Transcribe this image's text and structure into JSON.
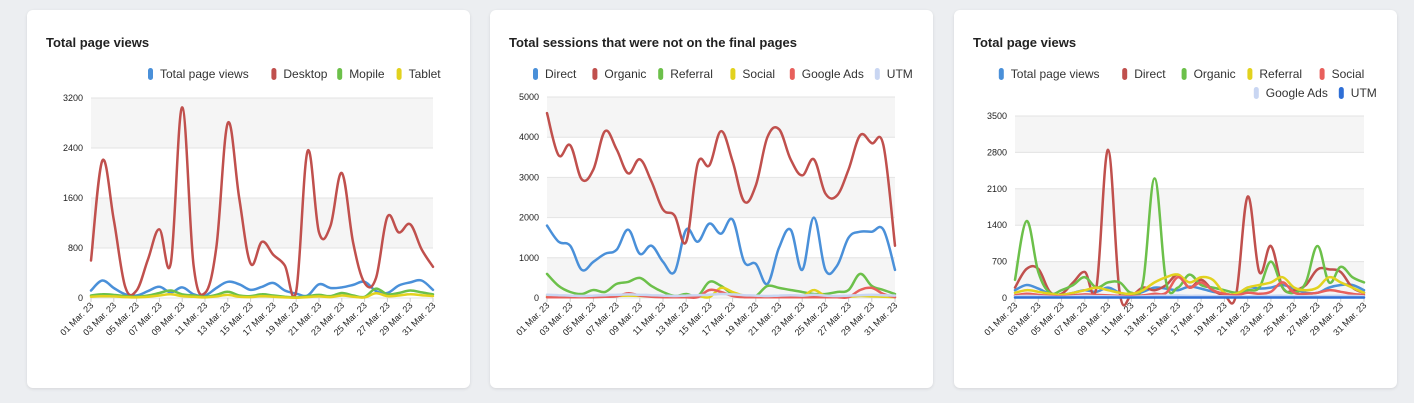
{
  "charts": [
    {
      "title": "Total page views",
      "chart_data": {
        "type": "line",
        "ylim": [
          0,
          3200
        ],
        "yticks": [
          "0",
          "800",
          "1600",
          "2400",
          "3200"
        ],
        "x": [
          "01 Mar. 23",
          "02 Mar. 23",
          "03 Mar. 23",
          "04 Mar. 23",
          "05 Mar. 23",
          "06 Mar. 23",
          "07 Mar. 23",
          "08 Mar. 23",
          "09 Mar. 23",
          "10 Mar. 23",
          "11 Mar. 23",
          "12 Mar. 23",
          "13 Mar. 23",
          "14 Mar. 23",
          "15 Mar. 23",
          "16 Mar. 23",
          "17 Mar. 23",
          "18 Mar. 23",
          "19 Mar. 23",
          "20 Mar. 23",
          "21 Mar. 23",
          "22 Mar. 23",
          "23 Mar. 23",
          "24 Mar. 23",
          "25 Mar. 23",
          "26 Mar. 23",
          "27 Mar. 23",
          "28 Mar. 23",
          "29 Mar. 23",
          "30 Mar. 23",
          "31 Mar. 23"
        ],
        "xtick_labels": [
          "01 Mar. 23",
          "03 Mar. 23",
          "05 Mar. 23",
          "07 Mar. 23",
          "09 Mar. 23",
          "11 Mar. 23",
          "13 Mar. 23",
          "15 Mar. 23",
          "17 Mar. 23",
          "19 Mar. 23",
          "21 Mar. 23",
          "23 Mar. 23",
          "25 Mar. 23",
          "27 Mar. 23",
          "29 Mar. 23",
          "31 Mar. 23"
        ],
        "legend_rows": [
          [
            0,
            1,
            2,
            3
          ]
        ],
        "series": [
          {
            "name": "Total page views",
            "color": "#4a90d9",
            "values": [
              120,
              280,
              160,
              60,
              40,
              110,
              180,
              90,
              170,
              60,
              40,
              160,
              260,
              220,
              130,
              180,
              240,
              120,
              70,
              40,
              220,
              160,
              170,
              210,
              260,
              110,
              80,
              200,
              250,
              280,
              130
            ]
          },
          {
            "name": "Desktop",
            "color": "#c0504d",
            "values": [
              600,
              2200,
              1250,
              180,
              120,
              620,
              1100,
              560,
              3050,
              520,
              80,
              820,
              2800,
              1600,
              550,
              900,
              690,
              520,
              110,
              2350,
              1050,
              1150,
              2000,
              880,
              240,
              320,
              1300,
              1050,
              1180,
              780,
              500
            ]
          },
          {
            "name": "Mopile",
            "color": "#6cc04a",
            "values": [
              40,
              60,
              50,
              30,
              20,
              40,
              80,
              120,
              60,
              40,
              20,
              50,
              100,
              40,
              30,
              60,
              40,
              20,
              10,
              30,
              50,
              30,
              80,
              40,
              20,
              150,
              60,
              80,
              120,
              90,
              60
            ]
          },
          {
            "name": "Tablet",
            "color": "#e2d21e",
            "values": [
              20,
              30,
              25,
              15,
              10,
              20,
              40,
              60,
              30,
              20,
              10,
              25,
              50,
              20,
              15,
              30,
              20,
              10,
              5,
              15,
              25,
              15,
              40,
              20,
              10,
              75,
              30,
              40,
              60,
              45,
              30
            ]
          }
        ]
      }
    },
    {
      "title": "Total sessions that were not on the final pages",
      "chart_data": {
        "type": "line",
        "ylim": [
          0,
          5000
        ],
        "yticks": [
          "0",
          "1000",
          "2000",
          "3000",
          "4000",
          "5000"
        ],
        "x": [
          "01 Mar. 23",
          "02 Mar. 23",
          "03 Mar. 23",
          "04 Mar. 23",
          "05 Mar. 23",
          "06 Mar. 23",
          "07 Mar. 23",
          "08 Mar. 23",
          "09 Mar. 23",
          "10 Mar. 23",
          "11 Mar. 23",
          "12 Mar. 23",
          "13 Mar. 23",
          "14 Mar. 23",
          "15 Mar. 23",
          "16 Mar. 23",
          "17 Mar. 23",
          "18 Mar. 23",
          "19 Mar. 23",
          "20 Mar. 23",
          "21 Mar. 23",
          "22 Mar. 23",
          "23 Mar. 23",
          "24 Mar. 23",
          "25 Mar. 23",
          "26 Mar. 23",
          "27 Mar. 23",
          "28 Mar. 23",
          "29 Mar. 23",
          "30 Mar. 23",
          "31 Mar. 23"
        ],
        "xtick_labels": [
          "01 Mar. 23",
          "03 Mar. 23",
          "05 Mar. 23",
          "07 Mar. 23",
          "09 Mar. 23",
          "11 Mar. 23",
          "13 Mar. 23",
          "15 Mar. 23",
          "17 Mar. 23",
          "19 Mar. 23",
          "21 Mar. 23",
          "23 Mar. 23",
          "25 Mar. 23",
          "27 Mar. 23",
          "29 Mar. 23",
          "31 Mar. 23"
        ],
        "legend_rows": [
          [
            0,
            1,
            2,
            3,
            4,
            5
          ]
        ],
        "series": [
          {
            "name": "Direct",
            "color": "#4a90d9",
            "values": [
              1800,
              1400,
              1300,
              700,
              900,
              1100,
              1200,
              1700,
              1100,
              1300,
              900,
              650,
              1700,
              1400,
              1850,
              1600,
              1950,
              900,
              850,
              350,
              1250,
              1700,
              700,
              2000,
              700,
              800,
              1500,
              1650,
              1650,
              1700,
              700
            ]
          },
          {
            "name": "Organic",
            "color": "#c0504d",
            "values": [
              4600,
              3550,
              3800,
              2950,
              3200,
              4150,
              3700,
              3100,
              3450,
              2900,
              2200,
              2050,
              1400,
              3350,
              3300,
              4150,
              3400,
              2400,
              2800,
              4000,
              4200,
              3450,
              3050,
              3450,
              2600,
              2550,
              3200,
              4050,
              3850,
              3800,
              1300
            ]
          },
          {
            "name": "Referral",
            "color": "#6cc04a",
            "values": [
              600,
              300,
              150,
              100,
              200,
              150,
              350,
              400,
              500,
              300,
              150,
              50,
              100,
              50,
              400,
              300,
              100,
              50,
              50,
              300,
              250,
              200,
              150,
              100,
              100,
              150,
              200,
              600,
              300,
              200,
              100
            ]
          },
          {
            "name": "Social",
            "color": "#e2d21e",
            "values": [
              50,
              40,
              30,
              20,
              30,
              40,
              50,
              60,
              50,
              40,
              30,
              20,
              30,
              50,
              20,
              250,
              150,
              60,
              40,
              30,
              50,
              40,
              30,
              200,
              50,
              40,
              30,
              50,
              40,
              30,
              20
            ]
          },
          {
            "name": "Google Ads",
            "color": "#e8605c",
            "values": [
              20,
              20,
              20,
              20,
              20,
              30,
              40,
              120,
              60,
              30,
              20,
              20,
              20,
              20,
              200,
              150,
              50,
              20,
              20,
              20,
              20,
              20,
              20,
              20,
              20,
              20,
              20,
              200,
              250,
              100,
              20
            ]
          },
          {
            "name": "UTM",
            "color": "#c9d6f2",
            "values": [
              80,
              70,
              60,
              50,
              60,
              70,
              80,
              90,
              80,
              70,
              60,
              50,
              60,
              70,
              80,
              100,
              90,
              70,
              60,
              50,
              60,
              70,
              60,
              80,
              60,
              50,
              60,
              70,
              80,
              70,
              60
            ]
          }
        ]
      }
    },
    {
      "title": "Total page views",
      "chart_data": {
        "type": "line",
        "ylim": [
          0,
          3500
        ],
        "yticks": [
          "0",
          "700",
          "1400",
          "2100",
          "2800",
          "3500"
        ],
        "x": [
          "01 Mar. 23",
          "02 Mar. 23",
          "03 Mar. 23",
          "04 Mar. 23",
          "05 Mar. 23",
          "06 Mar. 23",
          "07 Mar. 23",
          "08 Mar. 23",
          "09 Mar. 23",
          "10 Mar. 23",
          "11 Mar. 23",
          "12 Mar. 23",
          "13 Mar. 23",
          "14 Mar. 23",
          "15 Mar. 23",
          "16 Mar. 23",
          "17 Mar. 23",
          "18 Mar. 23",
          "19 Mar. 23",
          "20 Mar. 23",
          "21 Mar. 23",
          "22 Mar. 23",
          "23 Mar. 23",
          "24 Mar. 23",
          "25 Mar. 23",
          "26 Mar. 23",
          "27 Mar. 23",
          "28 Mar. 23",
          "29 Mar. 23",
          "30 Mar. 23",
          "31 Mar. 23"
        ],
        "xtick_labels": [
          "01 Mar. 23",
          "03 Mar. 23",
          "05 Mar. 23",
          "07 Mar. 23",
          "09 Mar. 23",
          "11 Mar. 23",
          "13 Mar. 23",
          "15 Mar. 23",
          "17 Mar. 23",
          "19 Mar. 23",
          "21 Mar. 23",
          "23 Mar. 23",
          "25 Mar. 23",
          "27 Mar. 23",
          "29 Mar. 23",
          "31 Mar. 23"
        ],
        "legend_rows": [
          [
            0,
            1,
            2,
            3,
            4
          ],
          [
            5,
            6
          ]
        ],
        "series": [
          {
            "name": "Total page views",
            "color": "#4a90d9",
            "values": [
              150,
              250,
              180,
              80,
              60,
              100,
              150,
              120,
              200,
              100,
              50,
              120,
              200,
              180,
              150,
              220,
              180,
              120,
              90,
              50,
              200,
              180,
              200,
              250,
              180,
              100,
              100,
              200,
              250,
              250,
              150
            ]
          },
          {
            "name": "Direct",
            "color": "#c0504d",
            "values": [
              200,
              560,
              560,
              120,
              80,
              300,
              500,
              200,
              2850,
              100,
              50,
              200,
              150,
              250,
              450,
              200,
              350,
              150,
              50,
              50,
              1950,
              500,
              1000,
              200,
              150,
              250,
              550,
              550,
              500,
              200,
              100
            ]
          },
          {
            "name": "Organic",
            "color": "#6cc04a",
            "values": [
              350,
              1480,
              500,
              100,
              150,
              250,
              400,
              200,
              300,
              300,
              100,
              300,
              2300,
              300,
              200,
              450,
              250,
              200,
              150,
              100,
              150,
              200,
              700,
              200,
              100,
              300,
              1000,
              300,
              600,
              400,
              300
            ]
          },
          {
            "name": "Referral",
            "color": "#e2d21e",
            "values": [
              100,
              150,
              120,
              80,
              60,
              100,
              150,
              200,
              150,
              100,
              80,
              150,
              300,
              400,
              450,
              300,
              400,
              350,
              100,
              80,
              200,
              250,
              300,
              400,
              200,
              150,
              200,
              400,
              300,
              200,
              100
            ]
          },
          {
            "name": "Social",
            "color": "#e8605c",
            "values": [
              50,
              80,
              60,
              40,
              30,
              50,
              70,
              60,
              50,
              40,
              30,
              50,
              80,
              100,
              400,
              200,
              300,
              150,
              80,
              50,
              100,
              80,
              120,
              300,
              100,
              80,
              100,
              150,
              120,
              80,
              60
            ]
          },
          {
            "name": "Google Ads",
            "color": "#c9d6f2",
            "values": [
              30,
              40,
              35,
              25,
              20,
              30,
              40,
              35,
              30,
              25,
              20,
              30,
              40,
              45,
              50,
              40,
              45,
              35,
              30,
              25,
              30,
              35,
              40,
              45,
              35,
              30,
              35,
              40,
              45,
              40,
              30
            ]
          },
          {
            "name": "UTM",
            "color": "#2f6fd6",
            "values": [
              10,
              10,
              10,
              10,
              10,
              10,
              10,
              10,
              10,
              10,
              10,
              10,
              10,
              10,
              10,
              10,
              10,
              10,
              10,
              10,
              10,
              10,
              10,
              10,
              10,
              10,
              10,
              10,
              10,
              10,
              10
            ]
          }
        ]
      }
    }
  ]
}
